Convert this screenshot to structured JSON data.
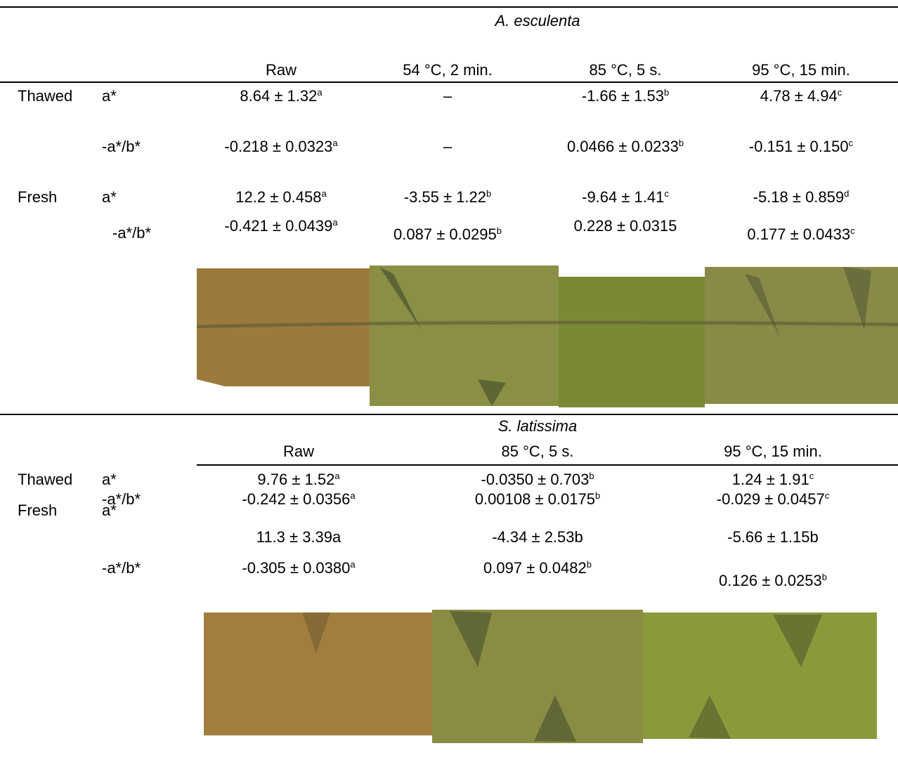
{
  "sections": [
    {
      "species": "A. esculenta",
      "columns": [
        "Raw",
        "54 °C, 2 min.",
        "85 °C, 5 s.",
        "95 °C, 15 min."
      ],
      "rows": [
        {
          "group": "Thawed",
          "measure": "a*",
          "cells": [
            {
              "text": "8.64 ± 1.32",
              "sup": "a"
            },
            {
              "text": "–"
            },
            {
              "text": "-1.66 ± 1.53",
              "sup": "b"
            },
            {
              "text": "4.78 ± 4.94",
              "sup": "c"
            }
          ]
        },
        {
          "measure": "-a*/b*",
          "cells": [
            {
              "text": "-0.218 ± 0.0323",
              "sup": "a"
            },
            {
              "text": "–"
            },
            {
              "text": "0.0466 ± 0.0233",
              "sup": "b"
            },
            {
              "text": "-0.151 ± 0.150",
              "sup": "c"
            }
          ]
        },
        {
          "group": "Fresh",
          "measure": "a*",
          "cells": [
            {
              "text": "12.2 ± 0.458",
              "sup": "a"
            },
            {
              "text": "-3.55 ± 1.22",
              "sup": "b"
            },
            {
              "text": "-9.64 ± 1.41",
              "sup": "c"
            },
            {
              "text": "-5.18 ± 0.859",
              "sup": "d"
            }
          ]
        },
        {
          "measure": "-a*/b*",
          "cells": [
            {
              "text": "-0.421 ± 0.0439",
              "sup": "a"
            },
            {
              "text": "0.087 ± 0.0295",
              "sup": "b"
            },
            {
              "text": "0.228 ± 0.0315"
            },
            {
              "text": "0.177 ± 0.0433",
              "sup": "c"
            }
          ]
        }
      ]
    },
    {
      "species": "S. latissima",
      "columns": [
        "Raw",
        "85 °C, 5 s.",
        "95 °C, 15 min."
      ],
      "rows": [
        {
          "group": "Thawed",
          "measure": "a*",
          "cells": [
            {
              "text": "9.76 ± 1.52",
              "sup": "a"
            },
            {
              "text": "-0.0350 ± 0.703",
              "sup": "b"
            },
            {
              "text": "1.24 ± 1.91",
              "sup": "c"
            }
          ]
        },
        {
          "measure": "-a*/b*",
          "cells": [
            {
              "text": "-0.242 ± 0.0356",
              "sup": "a"
            },
            {
              "text": "0.00108 ± 0.0175",
              "sup": "b"
            },
            {
              "text": "-0.029 ± 0.0457",
              "sup": "c"
            }
          ]
        },
        {
          "group": "Fresh",
          "measure": "a*",
          "cells": [
            {
              "text": "11.3 ± 3.39a"
            },
            {
              "text": "-4.34 ± 2.53b"
            },
            {
              "text": "-5.66 ± 1.15b"
            }
          ]
        },
        {
          "measure": "-a*/b*",
          "cells": [
            {
              "text": "-0.305 ± 0.0380",
              "sup": "a"
            },
            {
              "text": "0.097 ± 0.0482",
              "sup": "b"
            },
            {
              "text": "0.126 ± 0.0253",
              "sup": "b"
            }
          ]
        }
      ]
    }
  ]
}
